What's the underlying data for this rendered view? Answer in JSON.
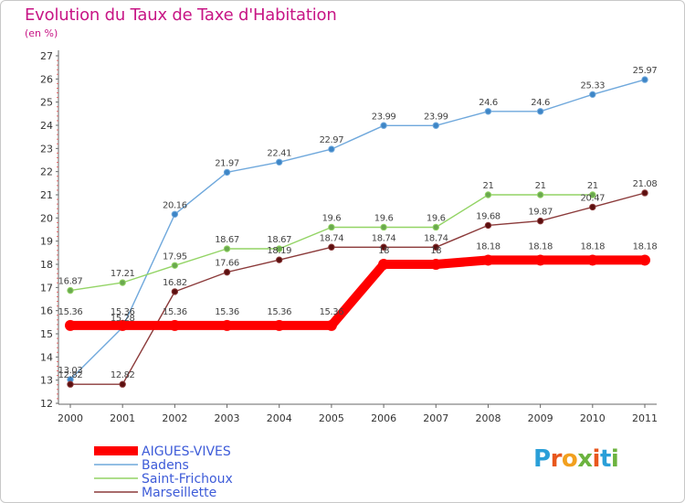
{
  "title": "Evolution du Taux de Taxe d'Habitation",
  "subtitle": "(en %)",
  "logo": {
    "text": "Proxiti",
    "letter_colors": [
      "#2a9fd8",
      "#e8571c",
      "#f2a01e",
      "#6cb33f",
      "#e8571c",
      "#2a9fd8",
      "#6cb33f"
    ]
  },
  "chart_data": {
    "type": "line",
    "title": "Evolution du Taux de Taxe d'Habitation",
    "ylabel": "(en %)",
    "xlabel": "",
    "x": [
      2000,
      2001,
      2002,
      2003,
      2004,
      2005,
      2006,
      2007,
      2008,
      2009,
      2010,
      2011
    ],
    "ylim": [
      12,
      27
    ],
    "yticks": [
      12,
      13,
      14,
      15,
      16,
      17,
      18,
      19,
      20,
      21,
      22,
      23,
      24,
      25,
      26,
      27
    ],
    "grid": false,
    "legend_position": "bottom-left",
    "series": [
      {
        "name": "AIGUES-VIVES",
        "color": "#ff0000",
        "thick": true,
        "values": [
          15.36,
          15.36,
          15.36,
          15.36,
          15.36,
          15.36,
          18,
          18,
          18.18,
          18.18,
          18.18,
          18.18
        ],
        "labels": [
          "15.36",
          "15.36",
          "15.36",
          "15.36",
          "15.36",
          "15.36",
          "18",
          "18",
          "18.18",
          "18.18",
          "18.18",
          "18.18"
        ]
      },
      {
        "name": "Badens",
        "color": "#6fa8dc",
        "marker_color": "#3d85c6",
        "thick": false,
        "values": [
          13.03,
          15.28,
          20.16,
          21.97,
          22.41,
          22.97,
          23.99,
          23.99,
          24.6,
          24.6,
          25.33,
          25.97
        ],
        "labels": [
          "13.03",
          "15.28",
          "20.16",
          "21.97",
          "22.41",
          "22.97",
          "23.99",
          "23.99",
          "24.6",
          "24.6",
          "25.33",
          "25.97"
        ]
      },
      {
        "name": "Saint-Frichoux",
        "color": "#93d465",
        "marker_color": "#6aa84f",
        "thick": false,
        "values": [
          16.87,
          17.21,
          17.95,
          18.67,
          18.67,
          19.6,
          19.6,
          19.6,
          21,
          21,
          21,
          null
        ],
        "labels": [
          "16.87",
          "17.21",
          "17.95",
          "18.67",
          "18.67",
          "19.6",
          "19.6",
          "19.6",
          "21",
          "21",
          "21",
          ""
        ]
      },
      {
        "name": "Marseillette",
        "color": "#8b3a3a",
        "marker_color": "#5b0f0f",
        "thick": false,
        "values": [
          12.82,
          12.82,
          16.82,
          17.66,
          18.19,
          18.74,
          18.74,
          18.74,
          19.68,
          19.87,
          20.47,
          21.08
        ],
        "labels": [
          "12.82",
          "12.82",
          "16.82",
          "17.66",
          "18.19",
          "18.74",
          "18.74",
          "18.74",
          "19.68",
          "19.87",
          "20.47",
          "21.08"
        ]
      }
    ]
  }
}
